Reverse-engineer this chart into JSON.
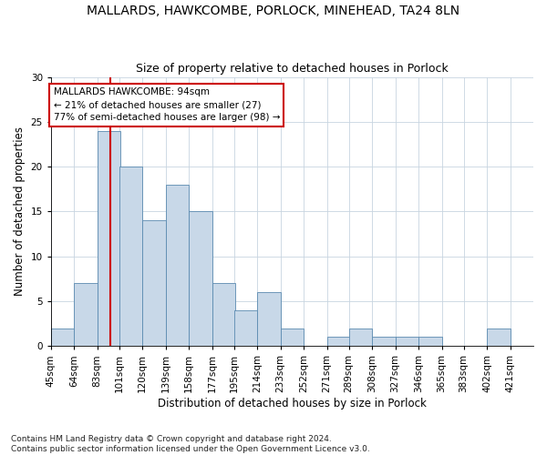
{
  "title": "MALLARDS, HAWKCOMBE, PORLOCK, MINEHEAD, TA24 8LN",
  "subtitle": "Size of property relative to detached houses in Porlock",
  "xlabel": "Distribution of detached houses by size in Porlock",
  "ylabel": "Number of detached properties",
  "footnote1": "Contains HM Land Registry data © Crown copyright and database right 2024.",
  "footnote2": "Contains public sector information licensed under the Open Government Licence v3.0.",
  "annotation_line1": "MALLARDS HAWKCOMBE: 94sqm",
  "annotation_line2": "← 21% of detached houses are smaller (27)",
  "annotation_line3": "77% of semi-detached houses are larger (98) →",
  "property_line_x": 94,
  "bar_color": "#c8d8e8",
  "bar_edge_color": "#5a8ab0",
  "vline_color": "#cc0000",
  "annotation_box_edge": "#cc0000",
  "background_color": "#ffffff",
  "grid_color": "#c8d4e0",
  "categories": [
    "45sqm",
    "64sqm",
    "83sqm",
    "101sqm",
    "120sqm",
    "139sqm",
    "158sqm",
    "177sqm",
    "195sqm",
    "214sqm",
    "233sqm",
    "252sqm",
    "271sqm",
    "289sqm",
    "308sqm",
    "327sqm",
    "346sqm",
    "365sqm",
    "383sqm",
    "402sqm",
    "421sqm"
  ],
  "bin_edges": [
    45,
    64,
    83,
    101,
    120,
    139,
    158,
    177,
    195,
    214,
    233,
    252,
    271,
    289,
    308,
    327,
    346,
    365,
    383,
    402,
    421
  ],
  "bin_width": 19,
  "values": [
    2,
    7,
    24,
    20,
    14,
    18,
    15,
    7,
    4,
    6,
    2,
    0,
    1,
    2,
    1,
    1,
    1,
    0,
    0,
    2,
    0
  ],
  "ylim": [
    0,
    30
  ],
  "yticks": [
    0,
    5,
    10,
    15,
    20,
    25,
    30
  ],
  "title_fontsize": 10,
  "subtitle_fontsize": 9,
  "annotation_fontsize": 7.5,
  "axis_label_fontsize": 8.5,
  "tick_fontsize": 7.5,
  "footnote_fontsize": 6.5
}
